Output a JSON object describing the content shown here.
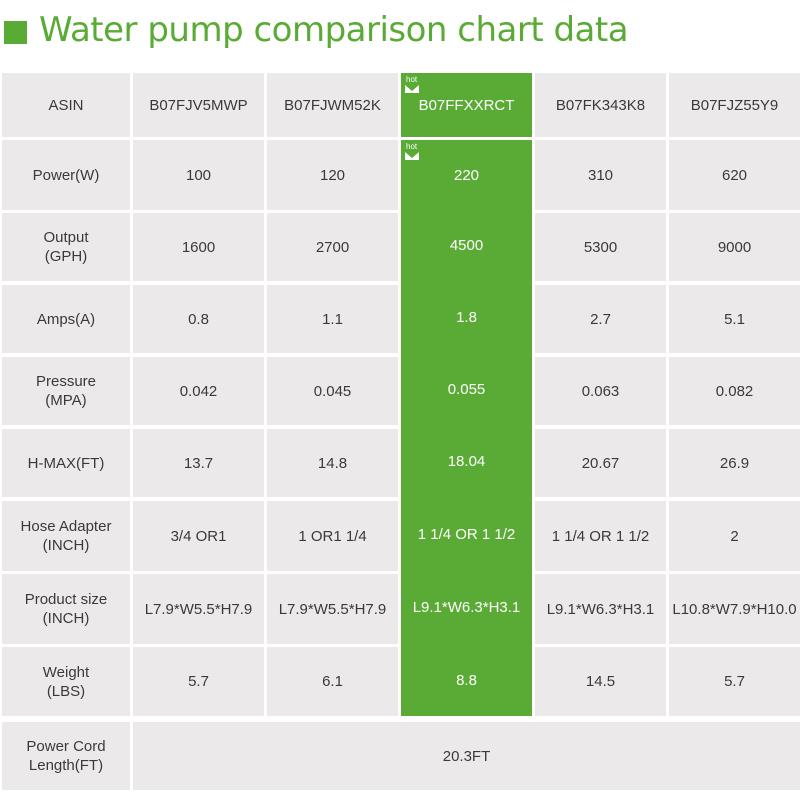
{
  "title": "Water pump comparison chart data",
  "hot_label": "hot",
  "highlight_color": "#5aab35",
  "highlight_column": 2,
  "columns": [
    "B07FJV5MWP",
    "B07FJWM52K",
    "B07FFXXRCT",
    "B07FK343K8",
    "B07FJZ55Y9"
  ],
  "header_label": "ASIN",
  "rows": [
    {
      "label": [
        "Power(W)"
      ],
      "values": [
        "100",
        "120",
        "220",
        "310",
        "620"
      ]
    },
    {
      "label": [
        "Output",
        "(GPH)"
      ],
      "values": [
        "1600",
        "2700",
        "4500",
        "5300",
        "9000"
      ]
    },
    {
      "label": [
        "Amps(A)"
      ],
      "values": [
        "0.8",
        "1.1",
        "1.8",
        "2.7",
        "5.1"
      ]
    },
    {
      "label": [
        "Pressure",
        "(MPA)"
      ],
      "values": [
        "0.042",
        "0.045",
        "0.055",
        "0.063",
        "0.082"
      ]
    },
    {
      "label": [
        "H-MAX(FT)"
      ],
      "values": [
        "13.7",
        "14.8",
        "18.04",
        "20.67",
        "26.9"
      ]
    },
    {
      "label": [
        "Hose Adapter",
        "(INCH)"
      ],
      "values": [
        "3/4 OR1",
        "1 OR1 1/4",
        "1 1/4 OR 1 1/2",
        "1 1/4 OR 1 1/2",
        "2"
      ]
    },
    {
      "label": [
        "Product size",
        "(INCH)"
      ],
      "values": [
        "L7.9*W5.5*H7.9",
        "L7.9*W5.5*H7.9",
        "L9.1*W6.3*H3.1",
        "L9.1*W6.3*H3.1",
        "L10.8*W7.9*H10.0"
      ]
    },
    {
      "label": [
        "Weight",
        "(LBS)"
      ],
      "values": [
        "5.7",
        "6.1",
        "8.8",
        "14.5",
        "5.7"
      ]
    }
  ],
  "footer": {
    "label": [
      "Power Cord",
      "Length(FT)"
    ],
    "value": "20.3FT"
  }
}
